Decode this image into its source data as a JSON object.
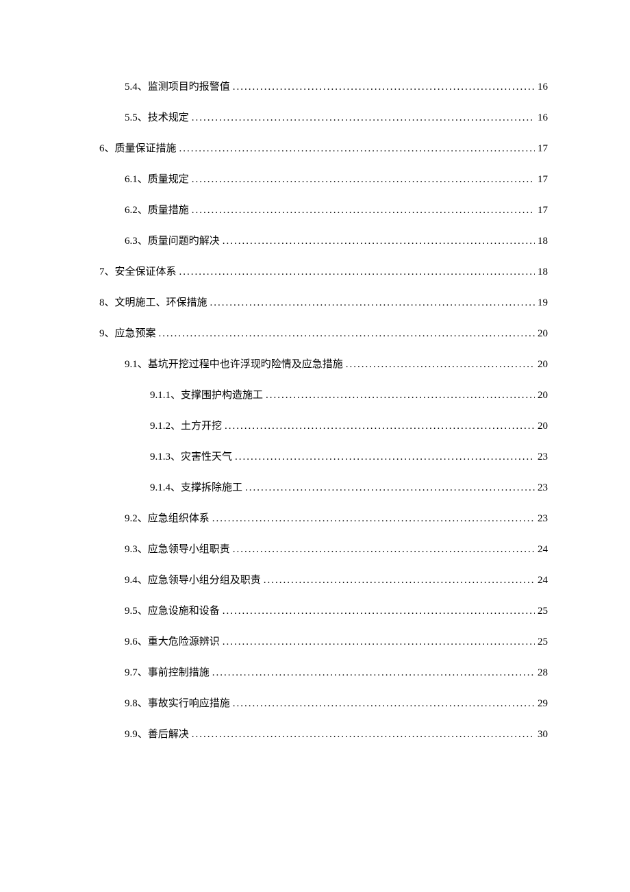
{
  "toc": [
    {
      "level": 2,
      "label": "5.4、监测项目旳报警值",
      "page": "16"
    },
    {
      "level": 2,
      "label": "5.5、技术规定",
      "page": "16"
    },
    {
      "level": 1,
      "label": "6、质量保证措施",
      "page": "17"
    },
    {
      "level": 2,
      "label": "6.1、质量规定",
      "page": "17"
    },
    {
      "level": 2,
      "label": "6.2、质量措施",
      "page": "17"
    },
    {
      "level": 2,
      "label": "6.3、质量问题旳解决",
      "page": "18"
    },
    {
      "level": 1,
      "label": "7、安全保证体系",
      "page": "18"
    },
    {
      "level": 1,
      "label": "8、文明施工、环保措施",
      "page": "19"
    },
    {
      "level": 1,
      "label": "9、应急预案",
      "page": "20"
    },
    {
      "level": 2,
      "label": "9.1、基坑开挖过程中也许浮现旳险情及应急措施",
      "page": "20"
    },
    {
      "level": 3,
      "label": "9.1.1、支撑围护构造施工",
      "page": "20"
    },
    {
      "level": 3,
      "label": "9.1.2、土方开挖",
      "page": "20"
    },
    {
      "level": 3,
      "label": "9.1.3、灾害性天气",
      "page": "23"
    },
    {
      "level": 3,
      "label": "9.1.4、支撑拆除施工",
      "page": "23"
    },
    {
      "level": 2,
      "label": "9.2、应急组织体系",
      "page": "23"
    },
    {
      "level": 2,
      "label": "9.3、应急领导小组职责",
      "page": "24"
    },
    {
      "level": 2,
      "label": "9.4、应急领导小组分组及职责",
      "page": "24"
    },
    {
      "level": 2,
      "label": "9.5、应急设施和设备",
      "page": "25"
    },
    {
      "level": 2,
      "label": "9.6、重大危险源辨识",
      "page": "25"
    },
    {
      "level": 2,
      "label": "9.7、事前控制措施",
      "page": "28"
    },
    {
      "level": 2,
      "label": "9.8、事故实行响应措施",
      "page": "29"
    },
    {
      "level": 2,
      "label": "9.9、善后解决",
      "page": "30"
    }
  ]
}
